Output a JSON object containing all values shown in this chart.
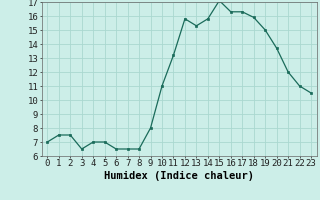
{
  "xlabel": "Humidex (Indice chaleur)",
  "ylabel": "",
  "x": [
    0,
    1,
    2,
    3,
    4,
    5,
    6,
    7,
    8,
    9,
    10,
    11,
    12,
    13,
    14,
    15,
    16,
    17,
    18,
    19,
    20,
    21,
    22,
    23
  ],
  "y": [
    7.0,
    7.5,
    7.5,
    6.5,
    7.0,
    7.0,
    6.5,
    6.5,
    6.5,
    8.0,
    11.0,
    13.2,
    15.8,
    15.3,
    15.8,
    17.1,
    16.3,
    16.3,
    15.9,
    15.0,
    13.7,
    12.0,
    11.0,
    10.5
  ],
  "line_color": "#1a6b5a",
  "marker_color": "#1a6b5a",
  "bg_color": "#cceee8",
  "grid_color": "#aad8d0",
  "ylim": [
    6,
    17
  ],
  "yticks": [
    6,
    7,
    8,
    9,
    10,
    11,
    12,
    13,
    14,
    15,
    16,
    17
  ],
  "tick_fontsize": 6.5,
  "xlabel_fontsize": 7.5
}
